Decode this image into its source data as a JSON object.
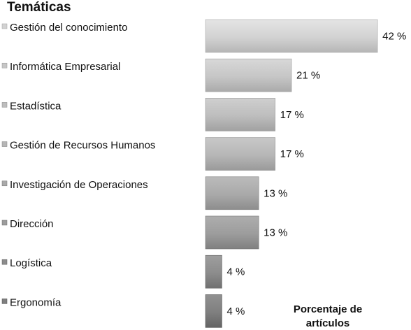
{
  "chart_data": {
    "type": "bar",
    "orientation": "horizontal",
    "legend_title": "Temáticas",
    "xlabel": "Porcentaje de artículos",
    "categories": [
      "Gestión del conocimiento",
      "Informática Empresarial",
      "Estadística",
      "Gestión de Recursos Humanos",
      "Investigación de Operaciones",
      "Dirección",
      "Logística",
      "Ergonomía"
    ],
    "values": [
      42,
      21,
      17,
      17,
      13,
      13,
      4,
      4
    ],
    "value_labels": [
      "42 %",
      "21 %",
      "17 %",
      "17 %",
      "13 %",
      "13 %",
      "4 %",
      "4 %"
    ],
    "bar_colors": [
      "#d2d2d2",
      "#c6c6c6",
      "#bdbdbd",
      "#b6b6b6",
      "#a9a9a9",
      "#9c9c9c",
      "#8c8c8c",
      "#7f7f7f"
    ],
    "legend_position": "left",
    "grid": false
  }
}
